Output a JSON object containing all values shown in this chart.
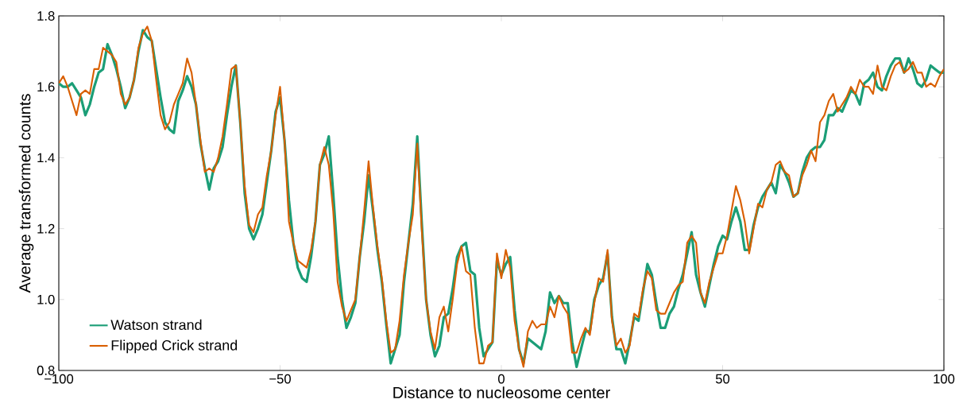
{
  "chart_data": {
    "type": "line",
    "xlabel": "Distance to nucleosome center",
    "ylabel": "Average transformed counts",
    "xlim": [
      -100,
      100
    ],
    "ylim": [
      0.8,
      1.8
    ],
    "xticks": [
      {
        "value": -100,
        "label": "−100"
      },
      {
        "value": -50,
        "label": "−50"
      },
      0,
      50,
      100
    ],
    "yticks": [
      {
        "value": 0.8,
        "label": "0.8"
      },
      {
        "value": 1.0,
        "label": "1.0"
      },
      {
        "value": 1.2,
        "label": "1.2"
      },
      {
        "value": 1.4,
        "label": "1.4"
      },
      {
        "value": 1.6,
        "label": "1.6"
      },
      {
        "value": 1.8,
        "label": "1.8"
      }
    ],
    "grid": false,
    "legend": "bottom left",
    "marker": "none",
    "line_style": "solid",
    "x": [
      -100,
      -99,
      -98,
      -97,
      -96,
      -95,
      -94,
      -93,
      -92,
      -91,
      -90,
      -89,
      -88,
      -87,
      -86,
      -85,
      -84,
      -83,
      -82,
      -81,
      -80,
      -79,
      -78,
      -77,
      -76,
      -75,
      -74,
      -73,
      -72,
      -71,
      -70,
      -69,
      -68,
      -67,
      -66,
      -65,
      -64,
      -63,
      -62,
      -61,
      -60,
      -59,
      -58,
      -57,
      -56,
      -55,
      -54,
      -53,
      -52,
      -51,
      -50,
      -49,
      -48,
      -47,
      -46,
      -45,
      -44,
      -43,
      -42,
      -41,
      -40,
      -39,
      -38,
      -37,
      -36,
      -35,
      -34,
      -33,
      -32,
      -31,
      -30,
      -29,
      -28,
      -27,
      -26,
      -25,
      -24,
      -23,
      -22,
      -21,
      -20,
      -19,
      -18,
      -17,
      -16,
      -15,
      -14,
      -13,
      -12,
      -11,
      -10,
      -9,
      -8,
      -7,
      -6,
      -5,
      -4,
      -3,
      -2,
      -1,
      0,
      1,
      2,
      3,
      4,
      5,
      6,
      7,
      8,
      9,
      10,
      11,
      12,
      13,
      14,
      15,
      16,
      17,
      18,
      19,
      20,
      21,
      22,
      23,
      24,
      25,
      26,
      27,
      28,
      29,
      30,
      31,
      32,
      33,
      34,
      35,
      36,
      37,
      38,
      39,
      40,
      41,
      42,
      43,
      44,
      45,
      46,
      47,
      48,
      49,
      50,
      51,
      52,
      53,
      54,
      55,
      56,
      57,
      58,
      59,
      60,
      61,
      62,
      63,
      64,
      65,
      66,
      67,
      68,
      69,
      70,
      71,
      72,
      73,
      74,
      75,
      76,
      77,
      78,
      79,
      80,
      81,
      82,
      83,
      84,
      85,
      86,
      87,
      88,
      89,
      90,
      91,
      92,
      93,
      94,
      95,
      96,
      97,
      98,
      99,
      100
    ],
    "series": [
      {
        "name": "Watson strand",
        "color": "#1b9e77",
        "values": [
          1.61,
          1.6,
          1.6,
          1.61,
          1.59,
          1.57,
          1.52,
          1.55,
          1.6,
          1.64,
          1.65,
          1.72,
          1.69,
          1.65,
          1.6,
          1.54,
          1.57,
          1.62,
          1.7,
          1.76,
          1.74,
          1.73,
          1.65,
          1.57,
          1.5,
          1.48,
          1.47,
          1.56,
          1.59,
          1.63,
          1.6,
          1.55,
          1.44,
          1.37,
          1.31,
          1.37,
          1.39,
          1.43,
          1.52,
          1.6,
          1.66,
          1.5,
          1.3,
          1.2,
          1.17,
          1.2,
          1.24,
          1.33,
          1.42,
          1.53,
          1.57,
          1.45,
          1.28,
          1.16,
          1.09,
          1.06,
          1.05,
          1.12,
          1.22,
          1.38,
          1.41,
          1.46,
          1.3,
          1.12,
          1.0,
          0.92,
          0.95,
          0.99,
          1.12,
          1.22,
          1.35,
          1.25,
          1.14,
          1.05,
          0.93,
          0.82,
          0.86,
          0.9,
          1.05,
          1.16,
          1.27,
          1.46,
          1.22,
          1.0,
          0.9,
          0.84,
          0.87,
          0.95,
          0.96,
          1.03,
          1.12,
          1.15,
          1.16,
          1.08,
          1.07,
          0.92,
          0.84,
          0.86,
          0.88,
          1.11,
          1.07,
          1.1,
          1.12,
          0.97,
          0.86,
          0.82,
          0.89,
          0.88,
          0.87,
          0.86,
          0.91,
          1.02,
          0.99,
          1.01,
          0.99,
          0.99,
          0.88,
          0.81,
          0.86,
          0.91,
          0.91,
          1.0,
          1.04,
          1.06,
          1.13,
          0.95,
          0.86,
          0.86,
          0.82,
          0.88,
          0.95,
          0.94,
          1.02,
          1.1,
          1.07,
          0.99,
          0.92,
          0.92,
          0.96,
          0.98,
          1.03,
          1.07,
          1.13,
          1.19,
          1.07,
          1.02,
          0.98,
          1.04,
          1.1,
          1.15,
          1.18,
          1.17,
          1.22,
          1.26,
          1.22,
          1.14,
          1.14,
          1.21,
          1.26,
          1.29,
          1.31,
          1.33,
          1.3,
          1.38,
          1.36,
          1.33,
          1.29,
          1.3,
          1.36,
          1.4,
          1.42,
          1.43,
          1.43,
          1.45,
          1.52,
          1.52,
          1.54,
          1.53,
          1.56,
          1.59,
          1.58,
          1.55,
          1.61,
          1.62,
          1.64,
          1.6,
          1.59,
          1.63,
          1.66,
          1.68,
          1.68,
          1.64,
          1.68,
          1.65,
          1.61,
          1.6,
          1.62,
          1.66,
          1.65,
          1.64,
          1.64
        ]
      },
      {
        "name": "Flipped Crick strand",
        "color": "#d95f02",
        "values": [
          1.61,
          1.63,
          1.6,
          1.56,
          1.52,
          1.58,
          1.59,
          1.58,
          1.65,
          1.65,
          1.71,
          1.7,
          1.69,
          1.67,
          1.58,
          1.55,
          1.57,
          1.62,
          1.71,
          1.75,
          1.77,
          1.73,
          1.62,
          1.52,
          1.48,
          1.5,
          1.55,
          1.58,
          1.61,
          1.68,
          1.64,
          1.55,
          1.45,
          1.36,
          1.37,
          1.36,
          1.4,
          1.46,
          1.55,
          1.65,
          1.66,
          1.5,
          1.32,
          1.21,
          1.19,
          1.24,
          1.26,
          1.35,
          1.42,
          1.52,
          1.6,
          1.45,
          1.22,
          1.16,
          1.11,
          1.1,
          1.09,
          1.14,
          1.22,
          1.38,
          1.43,
          1.38,
          1.25,
          1.05,
          0.98,
          0.94,
          0.97,
          1.0,
          1.12,
          1.25,
          1.39,
          1.26,
          1.15,
          1.06,
          0.94,
          0.85,
          0.86,
          0.94,
          1.07,
          1.16,
          1.24,
          1.44,
          1.2,
          1.0,
          0.91,
          0.86,
          0.95,
          0.98,
          0.91,
          1.0,
          1.1,
          1.15,
          1.08,
          1.07,
          0.92,
          0.82,
          0.82,
          0.87,
          0.88,
          1.13,
          1.06,
          1.14,
          1.09,
          0.94,
          0.86,
          0.81,
          0.91,
          0.94,
          0.92,
          0.93,
          0.93,
          0.98,
          0.95,
          1.01,
          0.98,
          0.96,
          0.85,
          0.85,
          0.89,
          0.92,
          0.9,
          0.99,
          1.06,
          1.05,
          1.14,
          0.94,
          0.87,
          0.89,
          0.85,
          0.87,
          0.96,
          0.95,
          1.03,
          1.08,
          1.06,
          0.97,
          0.96,
          0.96,
          0.99,
          1.02,
          1.04,
          1.05,
          1.16,
          1.18,
          1.16,
          1.02,
          0.99,
          1.05,
          1.09,
          1.13,
          1.13,
          1.18,
          1.25,
          1.32,
          1.28,
          1.22,
          1.13,
          1.2,
          1.27,
          1.26,
          1.31,
          1.33,
          1.38,
          1.39,
          1.36,
          1.35,
          1.29,
          1.3,
          1.35,
          1.38,
          1.42,
          1.39,
          1.5,
          1.52,
          1.56,
          1.58,
          1.53,
          1.55,
          1.57,
          1.6,
          1.58,
          1.62,
          1.6,
          1.6,
          1.58,
          1.66,
          1.6,
          1.59,
          1.63,
          1.66,
          1.67,
          1.64,
          1.65,
          1.67,
          1.64,
          1.64,
          1.6,
          1.61,
          1.6,
          1.63,
          1.65
        ]
      }
    ]
  }
}
